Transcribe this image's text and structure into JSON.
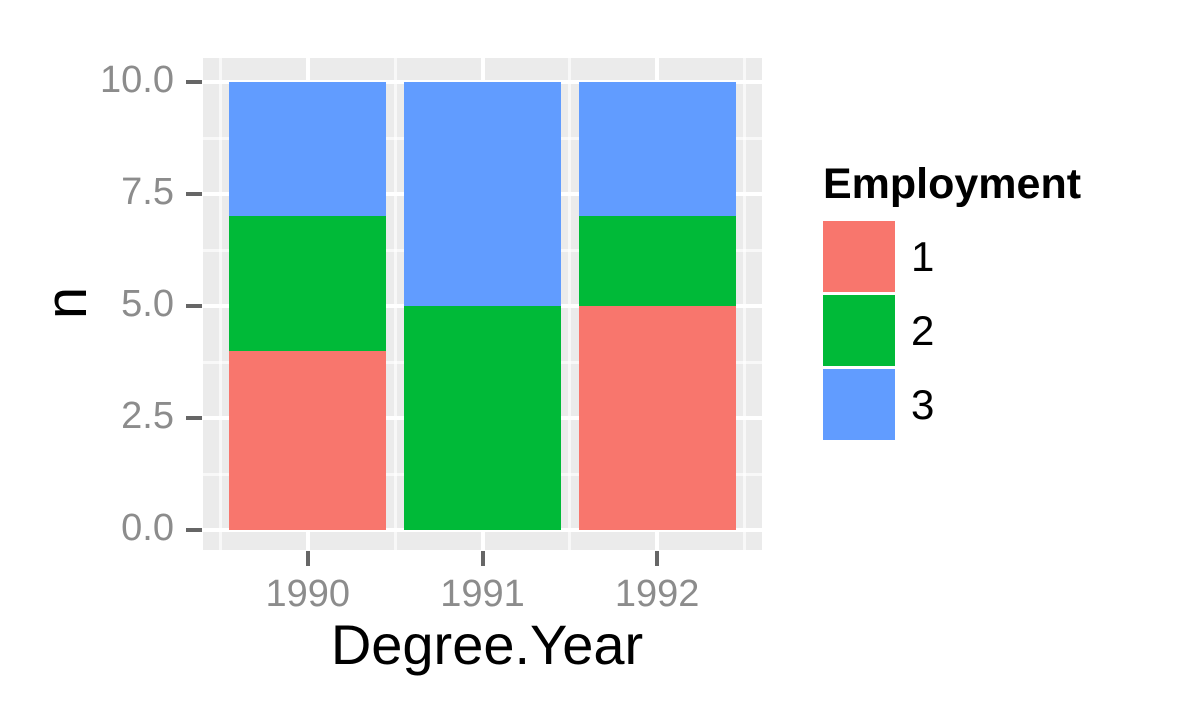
{
  "chart_data": {
    "type": "bar",
    "stacked": true,
    "title": "",
    "xlabel": "Degree.Year",
    "ylabel": "n",
    "categories": [
      "1990",
      "1991",
      "1992"
    ],
    "series": [
      {
        "name": "1",
        "color": "#F8766D",
        "values": [
          4,
          0,
          5
        ]
      },
      {
        "name": "2",
        "color": "#00BA38",
        "values": [
          3,
          5,
          2
        ]
      },
      {
        "name": "3",
        "color": "#619CFF",
        "values": [
          3,
          5,
          3
        ]
      }
    ],
    "ylim": [
      0,
      10
    ],
    "yticks": [
      0.0,
      2.5,
      5.0,
      7.5,
      10.0
    ],
    "ytick_labels": [
      "0.0",
      "2.5",
      "5.0",
      "7.5",
      "10.0"
    ],
    "yminor": [
      1.25,
      3.75,
      6.25,
      8.75
    ],
    "bar_width_fraction": 0.9,
    "grid": true,
    "legend": {
      "title": "Employment",
      "position": "right",
      "entries": [
        {
          "label": "1",
          "color": "#F8766D"
        },
        {
          "label": "2",
          "color": "#00BA38"
        },
        {
          "label": "3",
          "color": "#619CFF"
        }
      ]
    },
    "colors": {
      "panel_background": "#EBEBEB",
      "grid_major": "#FFFFFF",
      "axis_text": "#8C8C8C",
      "axis_title": "#000000",
      "tick_mark": "#666666",
      "figure_background": "#FFFFFF"
    }
  }
}
